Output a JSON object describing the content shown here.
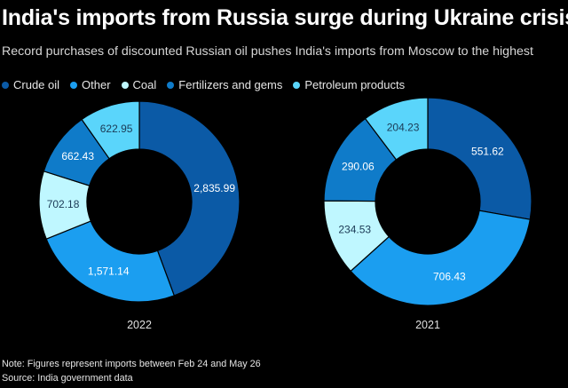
{
  "title": "India's imports from Russia surge during Ukraine crisis",
  "subtitle": "Record purchases of discounted Russian oil pushes India's imports from Moscow to the highest",
  "legend": [
    {
      "label": "Crude oil",
      "color": "#0b5aa6"
    },
    {
      "label": "Other",
      "color": "#1b9ef0"
    },
    {
      "label": "Coal",
      "color": "#bff7ff"
    },
    {
      "label": "Fertilizers and gems",
      "color": "#0f7bc9"
    },
    {
      "label": "Petroleum products",
      "color": "#5ad5fb"
    }
  ],
  "chart_data": [
    {
      "type": "pie",
      "variant": "donut",
      "title": "2022",
      "categories": [
        "Crude oil",
        "Other",
        "Coal",
        "Fertilizers and gems",
        "Petroleum products"
      ],
      "values": [
        2835.99,
        1571.14,
        702.18,
        662.43,
        622.95
      ],
      "labels": [
        "2,835.99",
        "1,571.14",
        "702.18",
        "662.43",
        "622.95"
      ]
    },
    {
      "type": "pie",
      "variant": "donut",
      "title": "2021",
      "categories": [
        "Crude oil",
        "Other",
        "Coal",
        "Fertilizers and gems",
        "Petroleum products"
      ],
      "values": [
        551.62,
        706.43,
        234.53,
        290.06,
        204.23
      ],
      "labels": [
        "551.62",
        "706.43",
        "234.53",
        "290.06",
        "204.23"
      ]
    }
  ],
  "notes": {
    "note": "Note: Figures represent imports between Feb 24 and May 26",
    "source": "Source: India government data"
  }
}
